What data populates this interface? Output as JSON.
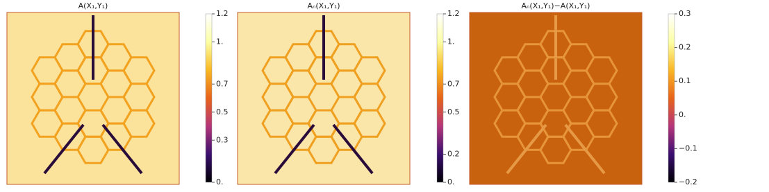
{
  "chart_data": [
    {
      "type": "heatmap",
      "title": "A(X₁,Y₁)",
      "background": "#fbe39c",
      "line_color": "#f2a21e",
      "colormap": [
        "#000004",
        "#3b0f70",
        "#b5367a",
        "#e8641a",
        "#f9b824",
        "#fcffa4",
        "#ffffff"
      ],
      "ylim": [
        0,
        1.2
      ],
      "yticks": [
        {
          "value": 0,
          "label": "0."
        },
        0.3,
        0.5,
        0.7,
        {
          "value": 1,
          "label": "1."
        },
        1.2
      ]
    },
    {
      "type": "heatmap",
      "title": "Aₙ(X₁,Y₁)",
      "background": "#fbe6aa",
      "line_color": "#f0a020",
      "colormap": [
        "#000004",
        "#3b0f70",
        "#b5367a",
        "#e8641a",
        "#f9b824",
        "#fcffa4",
        "#ffffff"
      ],
      "ylim": [
        0,
        1.2
      ],
      "yticks": [
        {
          "value": 0,
          "label": "0."
        },
        0.2,
        0.5,
        0.7,
        {
          "value": 1,
          "label": "1."
        },
        1.2
      ]
    },
    {
      "type": "heatmap",
      "title": "Aₙ(X₁,Y₁)−A(X₁,Y₁)",
      "background": "#c9620f",
      "line_color": "#e7953a",
      "colormap": [
        "#000004",
        "#3b0f70",
        "#b5367a",
        "#e8641a",
        "#f9b824",
        "#fcffa4",
        "#ffffff"
      ],
      "ylim": [
        -0.2,
        0.3
      ],
      "yticks": [
        {
          "value": -0.2,
          "label": "−0.2"
        },
        {
          "value": -0.1,
          "label": "−0.1"
        },
        {
          "value": 0,
          "label": "0."
        },
        0.1,
        0.2,
        0.3
      ]
    }
  ]
}
